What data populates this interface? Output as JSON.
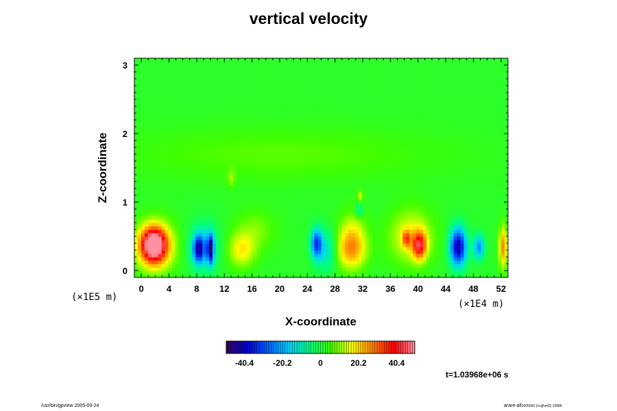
{
  "chart_data": {
    "type": "heatmap",
    "title": "vertical velocity",
    "xlabel": "X-coordinate",
    "ylabel": "Z-coordinate",
    "x_unit": "(×1E4 m)",
    "y_unit": "(×1E5 m)",
    "xlim": [
      -1,
      53
    ],
    "ylim": [
      -0.1,
      3.1
    ],
    "x_ticks": [
      0,
      4,
      8,
      12,
      16,
      20,
      24,
      28,
      32,
      36,
      40,
      44,
      48,
      52
    ],
    "x_tick_labels": [
      "0",
      "4",
      "8",
      "12",
      "16",
      "20",
      "24",
      "28",
      "32",
      "36",
      "40",
      "44",
      "48",
      "52"
    ],
    "y_ticks": [
      0,
      1,
      2,
      3
    ],
    "y_tick_labels": [
      "0",
      "1",
      "2",
      "3"
    ],
    "colorbar": {
      "min": -50,
      "max": 50,
      "tick_values": [
        -40.4,
        -20.2,
        0,
        20.2,
        40.4
      ],
      "tick_labels": [
        "-40.4",
        "-20.2",
        "0",
        "20.2",
        "40.4"
      ],
      "colors": [
        "#3a0060",
        "#0000d0",
        "#0060ff",
        "#00d0ff",
        "#00ff80",
        "#40ff00",
        "#ffff00",
        "#ff8000",
        "#ff0000",
        "#ff90a0"
      ]
    },
    "background_value": 2,
    "features": [
      {
        "x": 1.8,
        "z": 0.38,
        "value": 45,
        "rx": 1.8,
        "rz": 0.25
      },
      {
        "x": 2.0,
        "z": 0.36,
        "value": 20,
        "rx": 3.0,
        "rz": 0.36
      },
      {
        "x": 8.3,
        "z": 0.32,
        "value": -35,
        "rx": 0.8,
        "rz": 0.2
      },
      {
        "x": 10.0,
        "z": 0.32,
        "value": -40,
        "rx": 0.5,
        "rz": 0.22
      },
      {
        "x": 9.0,
        "z": 0.35,
        "value": -15,
        "rx": 2.2,
        "rz": 0.35
      },
      {
        "x": 14.5,
        "z": 0.3,
        "value": 15,
        "rx": 2.0,
        "rz": 0.25
      },
      {
        "x": 16.5,
        "z": 0.6,
        "value": 7,
        "rx": 3.0,
        "rz": 0.3
      },
      {
        "x": 25.3,
        "z": 0.4,
        "value": -32,
        "rx": 0.8,
        "rz": 0.22
      },
      {
        "x": 26.8,
        "z": 0.3,
        "value": -15,
        "rx": 1.5,
        "rz": 0.3
      },
      {
        "x": 30.3,
        "z": 0.3,
        "value": 22,
        "rx": 2.2,
        "rz": 0.28
      },
      {
        "x": 30.5,
        "z": 0.6,
        "value": 10,
        "rx": 2.0,
        "rz": 0.3
      },
      {
        "x": 31.7,
        "z": 1.1,
        "value": 12,
        "rx": 0.4,
        "rz": 0.08
      },
      {
        "x": 31.5,
        "z": 0.88,
        "value": -12,
        "rx": 0.6,
        "rz": 0.1
      },
      {
        "x": 38.3,
        "z": 0.47,
        "value": 20,
        "rx": 0.6,
        "rz": 0.12
      },
      {
        "x": 40.2,
        "z": 0.37,
        "value": 32,
        "rx": 1.0,
        "rz": 0.2
      },
      {
        "x": 39.0,
        "z": 0.5,
        "value": 15,
        "rx": 3.2,
        "rz": 0.4
      },
      {
        "x": 45.8,
        "z": 0.35,
        "value": -45,
        "rx": 1.2,
        "rz": 0.28
      },
      {
        "x": 48.8,
        "z": 0.35,
        "value": -25,
        "rx": 0.8,
        "rz": 0.18
      },
      {
        "x": 52.3,
        "z": 0.35,
        "value": 25,
        "rx": 0.6,
        "rz": 0.3
      },
      {
        "x": 20.0,
        "z": 1.7,
        "value": 5,
        "rx": 25.0,
        "rz": 0.4
      },
      {
        "x": 13.0,
        "z": 1.35,
        "value": 8,
        "rx": 0.5,
        "rz": 0.12
      }
    ],
    "time_label": "t=1.03968e+06 s",
    "grid": false
  },
  "footer": {
    "left": "/usr/bin/gpview 2005-09-24",
    "right": "arare-all",
    "right_small": "2005093 (nc@vel2) 10588"
  }
}
